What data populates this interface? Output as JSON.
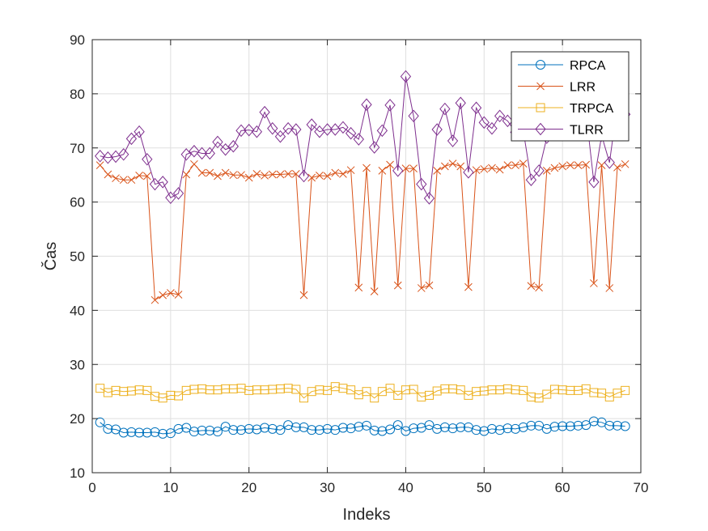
{
  "chart_data": {
    "type": "line",
    "xlabel": "Indeks",
    "ylabel": "Čas",
    "xlim": [
      0,
      70
    ],
    "ylim": [
      10,
      90
    ],
    "xticks": [
      "0",
      "10",
      "20",
      "30",
      "40",
      "50",
      "60",
      "70"
    ],
    "yticks": [
      "10",
      "20",
      "30",
      "40",
      "50",
      "60",
      "70",
      "80",
      "90"
    ],
    "grid": true,
    "legend_position": "top-right",
    "series": [
      {
        "name": "RPCA",
        "color": "#0072BD",
        "marker": "circle",
        "values": [
          19.3,
          18.1,
          18.0,
          17.4,
          17.5,
          17.4,
          17.4,
          17.5,
          17.2,
          17.3,
          18.1,
          18.3,
          17.6,
          17.8,
          17.8,
          17.6,
          18.5,
          17.9,
          17.9,
          18.1,
          18.0,
          18.3,
          18.1,
          17.9,
          18.8,
          18.4,
          18.4,
          17.9,
          17.9,
          18.1,
          17.9,
          18.3,
          18.2,
          18.5,
          18.7,
          17.8,
          17.7,
          18.0,
          18.8,
          17.7,
          18.2,
          18.3,
          18.8,
          18.1,
          18.4,
          18.2,
          18.4,
          18.4,
          17.9,
          17.7,
          18.1,
          17.9,
          18.2,
          18.1,
          18.4,
          18.7,
          18.7,
          18.1,
          18.5,
          18.6,
          18.6,
          18.7,
          18.8,
          19.5,
          19.3,
          18.7,
          18.7,
          18.6
        ]
      },
      {
        "name": "LRR",
        "color": "#D95319",
        "marker": "x",
        "values": [
          66.8,
          65.1,
          64.4,
          64.1,
          64.1,
          64.9,
          64.8,
          41.9,
          42.8,
          43.2,
          42.9,
          65.1,
          67.0,
          65.4,
          65.4,
          64.8,
          65.4,
          65.0,
          65.0,
          64.5,
          65.2,
          64.9,
          65.1,
          65.1,
          65.2,
          65.2,
          42.8,
          64.5,
          64.9,
          64.8,
          65.4,
          65.2,
          65.9,
          44.2,
          66.3,
          43.5,
          65.8,
          66.9,
          44.6,
          66.2,
          66.2,
          44.1,
          44.6,
          65.8,
          66.6,
          67.1,
          66.6,
          44.3,
          65.9,
          66.1,
          66.3,
          66.0,
          66.8,
          66.8,
          67.1,
          44.5,
          44.2,
          65.8,
          66.3,
          66.6,
          66.8,
          66.8,
          66.9,
          45.0,
          66.8,
          44.1,
          66.4,
          67.0
        ]
      },
      {
        "name": "TRPCA",
        "color": "#EDB120",
        "marker": "square",
        "values": [
          25.6,
          24.8,
          25.2,
          25.0,
          25.1,
          25.3,
          25.2,
          24.1,
          23.8,
          24.3,
          24.2,
          25.2,
          25.4,
          25.5,
          25.3,
          25.3,
          25.5,
          25.5,
          25.6,
          25.2,
          25.3,
          25.3,
          25.4,
          25.5,
          25.6,
          25.4,
          23.8,
          25.0,
          25.3,
          25.2,
          25.9,
          25.6,
          25.3,
          24.4,
          25.0,
          23.8,
          25.0,
          25.6,
          24.3,
          25.3,
          25.4,
          24.0,
          24.3,
          25.1,
          25.5,
          25.5,
          25.3,
          24.3,
          25.0,
          25.1,
          25.3,
          25.3,
          25.5,
          25.3,
          25.2,
          24.0,
          23.8,
          24.5,
          25.4,
          25.3,
          25.2,
          25.2,
          25.5,
          24.8,
          24.7,
          24.0,
          24.7,
          25.2
        ]
      },
      {
        "name": "TLRR",
        "color": "#7E2F8E",
        "marker": "diamond",
        "values": [
          68.5,
          68.2,
          68.4,
          68.8,
          71.7,
          73.0,
          67.9,
          63.3,
          63.7,
          60.8,
          61.6,
          68.8,
          69.4,
          69.0,
          69.0,
          71.1,
          69.7,
          70.3,
          73.2,
          73.3,
          73.0,
          76.6,
          73.6,
          72.1,
          73.6,
          73.4,
          64.8,
          74.3,
          73.0,
          73.4,
          73.4,
          73.8,
          72.7,
          71.6,
          78.0,
          70.1,
          73.2,
          77.9,
          65.8,
          83.2,
          75.9,
          63.3,
          60.7,
          73.4,
          77.2,
          71.3,
          78.3,
          65.5,
          77.4,
          74.7,
          73.6,
          75.9,
          75.0,
          72.9,
          73.2,
          64.1,
          65.8,
          71.9,
          73.4,
          75.5,
          75.5,
          77.0,
          76.6,
          63.7,
          72.3,
          67.3,
          77.9,
          76.2
        ]
      }
    ]
  }
}
